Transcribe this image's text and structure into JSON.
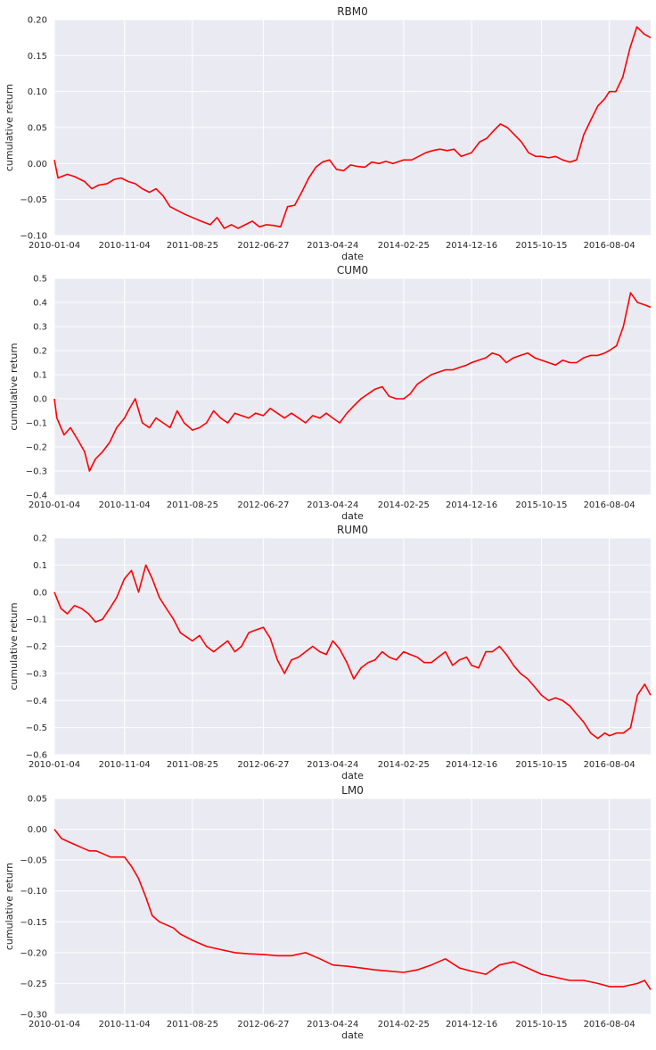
{
  "chart_data": [
    {
      "type": "line",
      "title": "RBM0",
      "xlabel": "date",
      "ylabel": "cumulative return",
      "x_ticks": [
        "2010-01-04",
        "2010-11-04",
        "2011-08-25",
        "2012-06-27",
        "2013-04-24",
        "2014-02-25",
        "2014-12-16",
        "2015-10-15",
        "2016-08-04"
      ],
      "y_ticks": [
        "0.20",
        "0.15",
        "0.10",
        "0.05",
        "0.00",
        "−0.05",
        "−0.10"
      ],
      "ylim": [
        -0.1,
        0.2
      ],
      "xlim": [
        "2010-01-04",
        "2017-01-30"
      ],
      "grid": true,
      "color": "#ff0000",
      "series": [
        {
          "x": [
            "2010-01-04",
            "2010-01-20",
            "2010-03-01",
            "2010-04-01",
            "2010-05-15",
            "2010-06-15",
            "2010-07-15",
            "2010-08-20",
            "2010-09-20",
            "2010-10-20",
            "2010-11-20",
            "2010-12-20",
            "2011-01-20",
            "2011-02-20",
            "2011-03-20",
            "2011-04-20",
            "2011-05-20",
            "2011-06-20",
            "2011-07-20",
            "2011-08-25",
            "2011-10-01",
            "2011-11-10",
            "2011-12-10",
            "2012-01-10",
            "2012-02-10",
            "2012-03-10",
            "2012-04-10",
            "2012-05-10",
            "2012-06-10",
            "2012-07-10",
            "2012-08-10",
            "2012-09-10",
            "2012-10-10",
            "2012-11-10",
            "2012-12-10",
            "2013-01-10",
            "2013-02-10",
            "2013-03-10",
            "2013-04-10",
            "2013-05-10",
            "2013-06-10",
            "2013-07-10",
            "2013-08-10",
            "2013-09-10",
            "2013-10-10",
            "2013-11-10",
            "2013-12-10",
            "2014-01-10",
            "2014-02-25",
            "2014-04-01",
            "2014-05-01",
            "2014-06-01",
            "2014-07-01",
            "2014-08-01",
            "2014-09-01",
            "2014-10-01",
            "2014-11-01",
            "2014-12-16",
            "2015-01-20",
            "2015-02-20",
            "2015-03-20",
            "2015-04-20",
            "2015-05-20",
            "2015-06-20",
            "2015-07-20",
            "2015-08-20",
            "2015-09-20",
            "2015-10-15",
            "2015-11-15",
            "2015-12-15",
            "2016-01-15",
            "2016-02-15",
            "2016-03-15",
            "2016-04-15",
            "2016-05-15",
            "2016-06-15",
            "2016-07-15",
            "2016-08-04",
            "2016-09-01",
            "2016-10-01",
            "2016-11-01",
            "2016-12-01",
            "2017-01-01",
            "2017-01-30"
          ],
          "y": [
            0.005,
            -0.02,
            -0.015,
            -0.018,
            -0.025,
            -0.035,
            -0.03,
            -0.028,
            -0.022,
            -0.02,
            -0.025,
            -0.028,
            -0.035,
            -0.04,
            -0.035,
            -0.045,
            -0.06,
            -0.065,
            -0.07,
            -0.075,
            -0.08,
            -0.085,
            -0.075,
            -0.09,
            -0.085,
            -0.09,
            -0.085,
            -0.08,
            -0.088,
            -0.085,
            -0.086,
            -0.088,
            -0.06,
            -0.058,
            -0.04,
            -0.02,
            -0.005,
            0.002,
            0.005,
            -0.008,
            -0.01,
            -0.002,
            -0.004,
            -0.005,
            0.002,
            0.0,
            0.003,
            0.0,
            0.005,
            0.005,
            0.01,
            0.015,
            0.018,
            0.02,
            0.018,
            0.02,
            0.01,
            0.015,
            0.03,
            0.035,
            0.045,
            0.055,
            0.05,
            0.04,
            0.03,
            0.015,
            0.01,
            0.01,
            0.008,
            0.01,
            0.005,
            0.002,
            0.005,
            0.04,
            0.06,
            0.08,
            0.09,
            0.1,
            0.1,
            0.12,
            0.16,
            0.19,
            0.18,
            0.175
          ]
        }
      ]
    },
    {
      "type": "line",
      "title": "CUM0",
      "xlabel": "date",
      "ylabel": "cumulative return",
      "x_ticks": [
        "2010-01-04",
        "2010-11-04",
        "2011-08-25",
        "2012-06-27",
        "2013-04-24",
        "2014-02-25",
        "2014-12-16",
        "2015-10-15",
        "2016-08-04"
      ],
      "y_ticks": [
        "0.5",
        "0.4",
        "0.3",
        "0.2",
        "0.1",
        "0.0",
        "−0.1",
        "−0.2",
        "−0.3",
        "−0.4"
      ],
      "ylim": [
        -0.4,
        0.5
      ],
      "xlim": [
        "2010-01-04",
        "2017-01-30"
      ],
      "grid": true,
      "color": "#ff0000",
      "series": [
        {
          "x": [
            "2010-01-04",
            "2010-01-15",
            "2010-02-15",
            "2010-03-15",
            "2010-04-15",
            "2010-05-15",
            "2010-06-05",
            "2010-07-01",
            "2010-08-01",
            "2010-09-01",
            "2010-10-01",
            "2010-11-04",
            "2010-11-20",
            "2010-12-20",
            "2011-01-20",
            "2011-02-20",
            "2011-03-20",
            "2011-04-20",
            "2011-05-20",
            "2011-06-20",
            "2011-07-20",
            "2011-08-25",
            "2011-09-25",
            "2011-10-25",
            "2011-11-25",
            "2011-12-25",
            "2012-01-25",
            "2012-02-25",
            "2012-03-25",
            "2012-04-25",
            "2012-05-25",
            "2012-06-27",
            "2012-07-27",
            "2012-08-27",
            "2012-09-27",
            "2012-10-27",
            "2012-11-27",
            "2012-12-27",
            "2013-01-27",
            "2013-02-27",
            "2013-03-27",
            "2013-04-24",
            "2013-05-24",
            "2013-06-24",
            "2013-07-24",
            "2013-08-24",
            "2013-09-24",
            "2013-10-24",
            "2013-11-24",
            "2013-12-24",
            "2014-01-24",
            "2014-02-25",
            "2014-03-25",
            "2014-04-25",
            "2014-05-25",
            "2014-06-25",
            "2014-07-25",
            "2014-08-25",
            "2014-09-25",
            "2014-10-25",
            "2014-11-25",
            "2014-12-16",
            "2015-01-16",
            "2015-02-16",
            "2015-03-16",
            "2015-04-16",
            "2015-05-16",
            "2015-06-16",
            "2015-07-16",
            "2015-08-16",
            "2015-09-16",
            "2015-10-15",
            "2015-11-15",
            "2015-12-15",
            "2016-01-15",
            "2016-02-15",
            "2016-03-15",
            "2016-04-15",
            "2016-05-15",
            "2016-06-15",
            "2016-07-15",
            "2016-08-04",
            "2016-09-04",
            "2016-10-04",
            "2016-11-04",
            "2016-12-04",
            "2017-01-04",
            "2017-01-30"
          ],
          "y": [
            0.0,
            -0.08,
            -0.15,
            -0.12,
            -0.17,
            -0.22,
            -0.3,
            -0.25,
            -0.22,
            -0.18,
            -0.12,
            -0.08,
            -0.05,
            0.0,
            -0.1,
            -0.12,
            -0.08,
            -0.1,
            -0.12,
            -0.05,
            -0.1,
            -0.13,
            -0.12,
            -0.1,
            -0.05,
            -0.08,
            -0.1,
            -0.06,
            -0.07,
            -0.08,
            -0.06,
            -0.07,
            -0.04,
            -0.06,
            -0.08,
            -0.06,
            -0.08,
            -0.1,
            -0.07,
            -0.08,
            -0.06,
            -0.08,
            -0.1,
            -0.06,
            -0.03,
            0.0,
            0.02,
            0.04,
            0.05,
            0.01,
            0.0,
            0.0,
            0.02,
            0.06,
            0.08,
            0.1,
            0.11,
            0.12,
            0.12,
            0.13,
            0.14,
            0.15,
            0.16,
            0.17,
            0.19,
            0.18,
            0.15,
            0.17,
            0.18,
            0.19,
            0.17,
            0.16,
            0.15,
            0.14,
            0.16,
            0.15,
            0.15,
            0.17,
            0.18,
            0.18,
            0.19,
            0.2,
            0.22,
            0.3,
            0.44,
            0.4,
            0.39,
            0.38
          ]
        }
      ]
    },
    {
      "type": "line",
      "title": "RUM0",
      "xlabel": "date",
      "ylabel": "cumulative return",
      "x_ticks": [
        "2010-01-04",
        "2010-11-04",
        "2011-08-25",
        "2012-06-27",
        "2013-04-24",
        "2014-02-25",
        "2014-12-16",
        "2015-10-15",
        "2016-08-04"
      ],
      "y_ticks": [
        "0.2",
        "0.1",
        "0.0",
        "−0.1",
        "−0.2",
        "−0.3",
        "−0.4",
        "−0.5",
        "−0.6"
      ],
      "ylim": [
        -0.6,
        0.2
      ],
      "xlim": [
        "2010-01-04",
        "2017-01-30"
      ],
      "grid": true,
      "color": "#ff0000",
      "series": [
        {
          "x": [
            "2010-01-04",
            "2010-02-01",
            "2010-03-01",
            "2010-04-01",
            "2010-05-01",
            "2010-06-01",
            "2010-07-01",
            "2010-08-01",
            "2010-09-01",
            "2010-10-01",
            "2010-11-04",
            "2010-12-04",
            "2011-01-04",
            "2011-02-04",
            "2011-03-04",
            "2011-04-04",
            "2011-05-04",
            "2011-06-04",
            "2011-07-04",
            "2011-08-25",
            "2011-09-25",
            "2011-10-25",
            "2011-11-25",
            "2011-12-25",
            "2012-01-25",
            "2012-02-25",
            "2012-03-25",
            "2012-04-25",
            "2012-05-25",
            "2012-06-27",
            "2012-07-27",
            "2012-08-27",
            "2012-09-27",
            "2012-10-27",
            "2012-11-27",
            "2012-12-27",
            "2013-01-27",
            "2013-02-27",
            "2013-03-27",
            "2013-04-24",
            "2013-05-24",
            "2013-06-24",
            "2013-07-24",
            "2013-08-24",
            "2013-09-24",
            "2013-10-24",
            "2013-11-24",
            "2013-12-24",
            "2014-01-24",
            "2014-02-25",
            "2014-03-25",
            "2014-04-25",
            "2014-05-25",
            "2014-06-25",
            "2014-07-25",
            "2014-08-25",
            "2014-09-25",
            "2014-10-25",
            "2014-11-25",
            "2014-12-16",
            "2015-01-16",
            "2015-02-16",
            "2015-03-16",
            "2015-04-16",
            "2015-05-16",
            "2015-06-16",
            "2015-07-16",
            "2015-08-16",
            "2015-09-16",
            "2015-10-15",
            "2015-11-15",
            "2015-12-15",
            "2016-01-15",
            "2016-02-15",
            "2016-03-15",
            "2016-04-15",
            "2016-05-15",
            "2016-06-15",
            "2016-07-15",
            "2016-08-04",
            "2016-09-04",
            "2016-10-04",
            "2016-11-04",
            "2016-12-04",
            "2017-01-04",
            "2017-01-30"
          ],
          "y": [
            0.0,
            -0.06,
            -0.08,
            -0.05,
            -0.06,
            -0.08,
            -0.11,
            -0.1,
            -0.06,
            -0.02,
            0.05,
            0.08,
            0.0,
            0.1,
            0.05,
            -0.02,
            -0.06,
            -0.1,
            -0.15,
            -0.18,
            -0.16,
            -0.2,
            -0.22,
            -0.2,
            -0.18,
            -0.22,
            -0.2,
            -0.15,
            -0.14,
            -0.13,
            -0.17,
            -0.25,
            -0.3,
            -0.25,
            -0.24,
            -0.22,
            -0.2,
            -0.22,
            -0.23,
            -0.18,
            -0.21,
            -0.26,
            -0.32,
            -0.28,
            -0.26,
            -0.25,
            -0.22,
            -0.24,
            -0.25,
            -0.22,
            -0.23,
            -0.24,
            -0.26,
            -0.26,
            -0.24,
            -0.22,
            -0.27,
            -0.25,
            -0.24,
            -0.27,
            -0.28,
            -0.22,
            -0.22,
            -0.2,
            -0.23,
            -0.27,
            -0.3,
            -0.32,
            -0.35,
            -0.38,
            -0.4,
            -0.39,
            -0.4,
            -0.42,
            -0.45,
            -0.48,
            -0.52,
            -0.54,
            -0.52,
            -0.53,
            -0.52,
            -0.52,
            -0.5,
            -0.38,
            -0.34,
            -0.38
          ]
        }
      ]
    },
    {
      "type": "line",
      "title": "LM0",
      "xlabel": "date",
      "ylabel": "cumulative return",
      "x_ticks": [
        "2010-01-04",
        "2010-11-04",
        "2011-08-25",
        "2012-06-27",
        "2013-04-24",
        "2014-02-25",
        "2014-12-16",
        "2015-10-15",
        "2016-08-04"
      ],
      "y_ticks": [
        "0.05",
        "0.00",
        "−0.05",
        "−0.10",
        "−0.15",
        "−0.20",
        "−0.25",
        "−0.30"
      ],
      "ylim": [
        -0.3,
        0.05
      ],
      "xlim": [
        "2010-01-04",
        "2017-01-30"
      ],
      "grid": true,
      "color": "#ff0000",
      "series": [
        {
          "x": [
            "2010-01-04",
            "2010-02-04",
            "2010-03-04",
            "2010-04-04",
            "2010-05-04",
            "2010-06-04",
            "2010-07-04",
            "2010-08-04",
            "2010-09-04",
            "2010-10-04",
            "2010-11-04",
            "2010-12-04",
            "2011-01-04",
            "2011-02-04",
            "2011-03-04",
            "2011-04-04",
            "2011-05-04",
            "2011-06-04",
            "2011-07-04",
            "2011-08-25",
            "2011-10-25",
            "2011-12-25",
            "2012-02-25",
            "2012-04-25",
            "2012-06-27",
            "2012-08-27",
            "2012-10-27",
            "2012-12-27",
            "2013-02-27",
            "2013-04-24",
            "2013-06-24",
            "2013-08-24",
            "2013-10-24",
            "2013-12-24",
            "2014-02-25",
            "2014-04-25",
            "2014-06-25",
            "2014-08-25",
            "2014-10-25",
            "2014-12-16",
            "2015-02-16",
            "2015-04-16",
            "2015-06-16",
            "2015-08-16",
            "2015-10-15",
            "2015-12-15",
            "2016-02-15",
            "2016-04-15",
            "2016-06-15",
            "2016-08-04",
            "2016-10-04",
            "2016-12-04",
            "2017-01-04",
            "2017-01-30"
          ],
          "y": [
            0.0,
            -0.015,
            -0.02,
            -0.025,
            -0.03,
            -0.035,
            -0.035,
            -0.04,
            -0.045,
            -0.045,
            -0.045,
            -0.06,
            -0.08,
            -0.11,
            -0.14,
            -0.15,
            -0.155,
            -0.16,
            -0.17,
            -0.18,
            -0.19,
            -0.195,
            -0.2,
            -0.202,
            -0.203,
            -0.205,
            -0.205,
            -0.2,
            -0.21,
            -0.22,
            -0.222,
            -0.225,
            -0.228,
            -0.23,
            -0.232,
            -0.228,
            -0.22,
            -0.21,
            -0.225,
            -0.23,
            -0.235,
            -0.22,
            -0.215,
            -0.225,
            -0.235,
            -0.24,
            -0.245,
            -0.245,
            -0.25,
            -0.255,
            -0.255,
            -0.25,
            -0.245,
            -0.26
          ]
        }
      ]
    }
  ]
}
